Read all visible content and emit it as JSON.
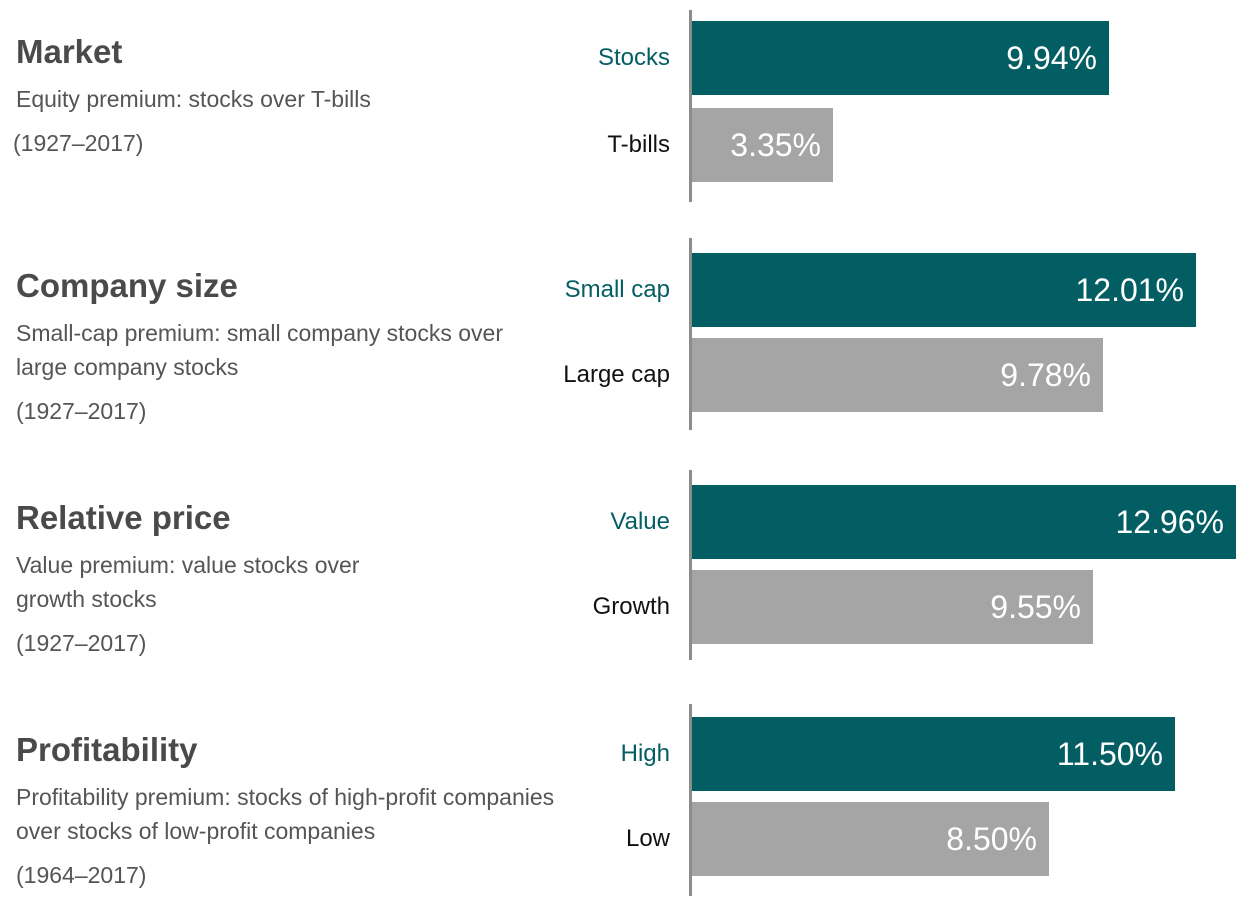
{
  "colors": {
    "primary": "#035e63",
    "secondary": "#a5a5a5",
    "axis": "#8c8c8c"
  },
  "chart_data": [
    {
      "type": "bar",
      "title": "Market",
      "subtitle": "Equity premium: stocks over T-bills",
      "period": "(1927–2017)",
      "categories": [
        "Stocks",
        "T-bills"
      ],
      "values": [
        9.94,
        3.35
      ],
      "value_labels": [
        "9.94%",
        "3.35%"
      ]
    },
    {
      "type": "bar",
      "title": "Company size",
      "subtitle": "Small-cap premium: small company stocks over large company stocks",
      "period": "(1927–2017)",
      "categories": [
        "Small cap",
        "Large cap"
      ],
      "values": [
        12.01,
        9.78
      ],
      "value_labels": [
        "12.01%",
        "9.78%"
      ]
    },
    {
      "type": "bar",
      "title": "Relative price",
      "subtitle": "Value premium: value stocks over growth stocks",
      "period": "(1927–2017)",
      "categories": [
        "Value",
        "Growth"
      ],
      "values": [
        12.96,
        9.55
      ],
      "value_labels": [
        "12.96%",
        "9.55%"
      ]
    },
    {
      "type": "bar",
      "title": "Profitability",
      "subtitle": "Profitability premium: stocks of high-profit companies over stocks of low-profit companies",
      "period": "(1964–2017)",
      "categories": [
        "High",
        "Low"
      ],
      "values": [
        11.5,
        8.5
      ],
      "value_labels": [
        "11.50%",
        "8.50%"
      ]
    }
  ]
}
